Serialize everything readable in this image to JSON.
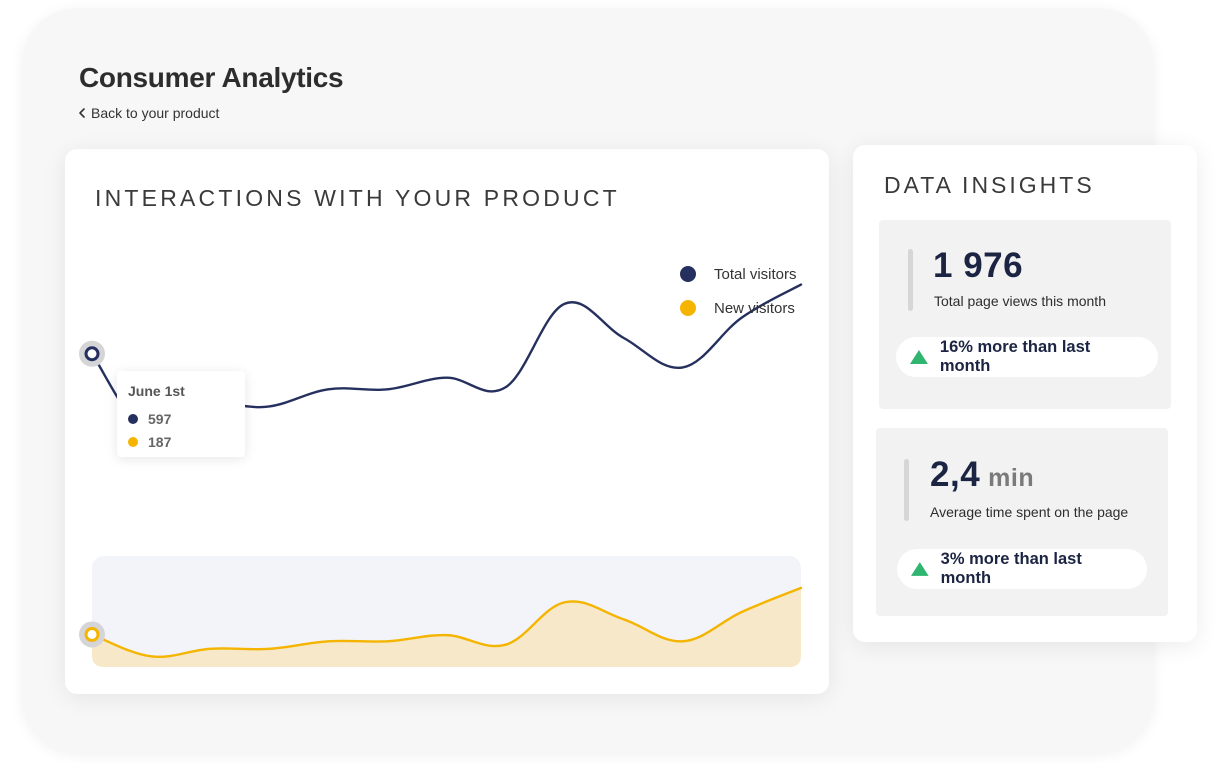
{
  "page": {
    "title": "Consumer Analytics",
    "back_label": "Back to your product"
  },
  "chart": {
    "title": "INTERACTIONS WITH YOUR PRODUCT",
    "legend": [
      {
        "label": "Total visitors",
        "color": "#26305e"
      },
      {
        "label": "New visitors",
        "color": "#f4b400"
      }
    ],
    "tooltip": {
      "date": "June 1st",
      "values": [
        "597",
        "187"
      ]
    }
  },
  "chart_data": {
    "type": "area",
    "title": "INTERACTIONS WITH YOUR PRODUCT",
    "xlabel": "",
    "ylabel": "",
    "grid": false,
    "legend_position": "top-right",
    "series": [
      {
        "name": "Total visitors",
        "color": "#26305e",
        "values": [
          597,
          475,
          520,
          520,
          545,
          545,
          562,
          548,
          670,
          620,
          577,
          650,
          698
        ]
      },
      {
        "name": "New visitors",
        "color": "#f4b400",
        "values": [
          187,
          155,
          166,
          166,
          177,
          177,
          186,
          172,
          234,
          209,
          177,
          220,
          255
        ]
      }
    ],
    "ylim": [
      100,
      750
    ],
    "highlight_index": 0
  },
  "insights": {
    "title": "DATA INSIGHTS",
    "metrics": [
      {
        "value": "1 976",
        "unit": "",
        "label": "Total page views this month",
        "change": "16% more than last month"
      },
      {
        "value": "2,4",
        "unit": "min",
        "label": "Average time spent on the page",
        "change": "3% more than last month"
      }
    ],
    "up_color": "#2fb56f"
  }
}
